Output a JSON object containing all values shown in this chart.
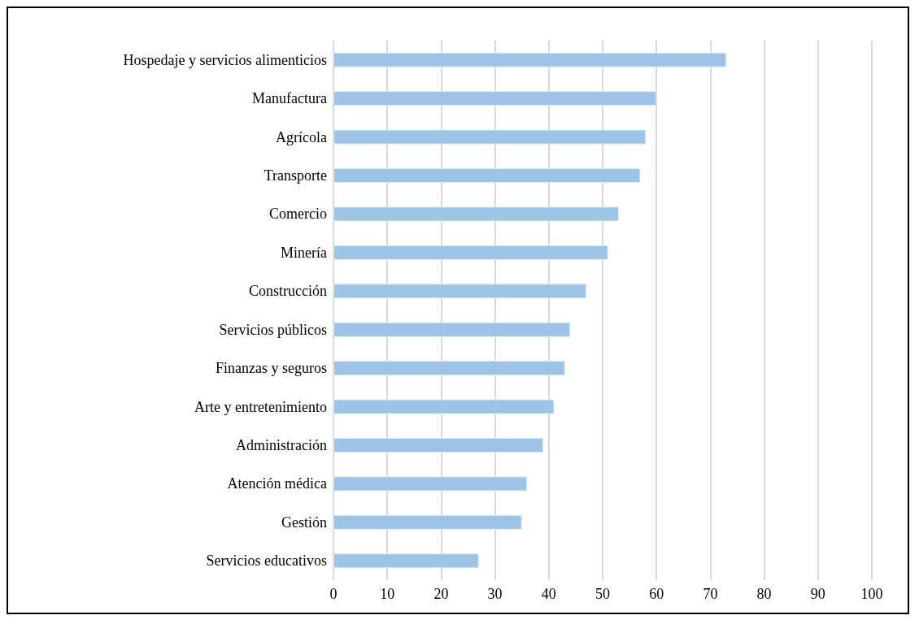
{
  "chart_data": {
    "type": "bar",
    "orientation": "horizontal",
    "categories": [
      "Hospedaje y servicios alimenticios",
      "Manufactura",
      "Agrícola",
      "Transporte",
      "Comercio",
      "Minería",
      "Construcción",
      "Servicios públicos",
      "Finanzas y seguros",
      "Arte y entretenimiento",
      "Administración",
      "Atención médica",
      "Gestión",
      "Servicios educativos"
    ],
    "values": [
      73,
      60,
      58,
      57,
      53,
      51,
      47,
      44,
      43,
      41,
      39,
      36,
      35,
      27
    ],
    "color": "#9dc3e6",
    "xlim": [
      0,
      100
    ],
    "xticks": [
      0,
      10,
      20,
      30,
      40,
      50,
      60,
      70,
      80,
      90,
      100
    ],
    "grid": "x"
  }
}
